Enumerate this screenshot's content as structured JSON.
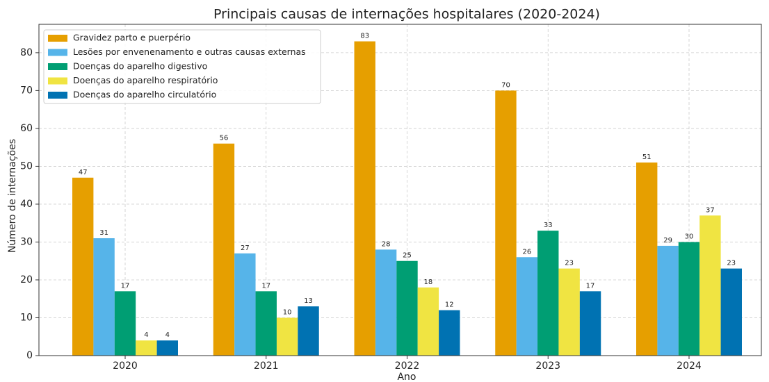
{
  "chart_data": {
    "type": "bar",
    "title": "Principais causas de internações hospitalares (2020-2024)",
    "x_label": "Ano",
    "y_label": "Número de internações",
    "categories": [
      "2020",
      "2021",
      "2022",
      "2023",
      "2024"
    ],
    "series": [
      {
        "name": "Gravidez parto e puerpério",
        "color": "#E69F00",
        "values": [
          47,
          56,
          83,
          70,
          51
        ]
      },
      {
        "name": "Lesões por envenenamento e outras causas externas",
        "color": "#56B4E9",
        "values": [
          31,
          27,
          28,
          26,
          29
        ]
      },
      {
        "name": "Doenças do aparelho digestivo",
        "color": "#009E73",
        "values": [
          17,
          17,
          25,
          33,
          30
        ]
      },
      {
        "name": "Doenças do aparelho respiratório",
        "color": "#F0E442",
        "values": [
          4,
          10,
          18,
          23,
          37
        ]
      },
      {
        "name": "Doenças do aparelho circulatório",
        "color": "#0072B2",
        "values": [
          4,
          13,
          12,
          17,
          23
        ]
      }
    ],
    "ylim": [
      0,
      87.5
    ],
    "yticks": [
      0,
      10,
      20,
      30,
      40,
      50,
      60,
      70,
      80
    ],
    "grid": true,
    "legend": "upper left"
  }
}
